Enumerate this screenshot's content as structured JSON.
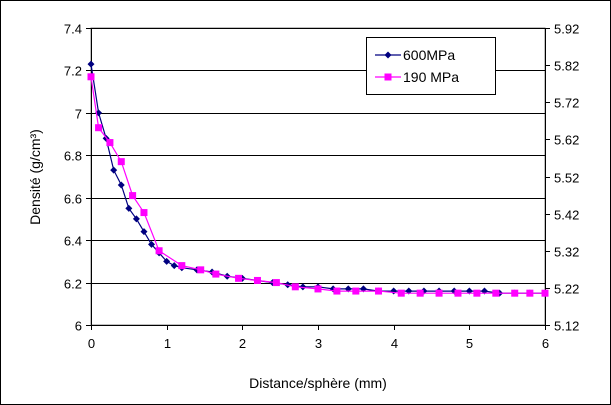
{
  "chart_data": {
    "type": "line",
    "title": "",
    "xlabel": "Distance/sphère (mm)",
    "ylabel": "Densité (g/cm³)",
    "xlim": [
      0,
      6
    ],
    "ylim": [
      6,
      7.4
    ],
    "ylim_right": [
      5.12,
      5.92
    ],
    "x_ticks": [
      "0",
      "1",
      "2",
      "3",
      "4",
      "5",
      "6"
    ],
    "y_ticks": [
      "6",
      "6.2",
      "6.4",
      "6.6",
      "6.8",
      "7",
      "7.2",
      "7.4"
    ],
    "y_right_ticks": [
      "5.12",
      "5.22",
      "5.32",
      "5.42",
      "5.52",
      "5.62",
      "5.72",
      "5.82",
      "5.92"
    ],
    "grid": "horizontal",
    "legend_position": "top-right",
    "colors": {
      "series_600": "#000080",
      "series_190": "#ff00ff",
      "grid": "#000000",
      "plot_border": "#808080"
    },
    "series": [
      {
        "name": "600MPa",
        "marker": "diamond",
        "x": [
          0.0,
          0.1,
          0.2,
          0.3,
          0.4,
          0.5,
          0.6,
          0.7,
          0.8,
          0.9,
          1.0,
          1.1,
          1.2,
          1.4,
          1.6,
          1.8,
          2.0,
          2.2,
          2.4,
          2.6,
          2.8,
          3.0,
          3.2,
          3.4,
          3.6,
          3.8,
          4.0,
          4.2,
          4.4,
          4.6,
          4.8,
          5.0,
          5.2,
          5.4,
          5.6,
          5.8,
          6.0
        ],
        "y": [
          7.23,
          7.0,
          6.88,
          6.73,
          6.66,
          6.55,
          6.5,
          6.44,
          6.38,
          6.34,
          6.3,
          6.28,
          6.27,
          6.26,
          6.25,
          6.23,
          6.22,
          6.21,
          6.2,
          6.19,
          6.18,
          6.18,
          6.17,
          6.17,
          6.17,
          6.16,
          6.16,
          6.16,
          6.16,
          6.16,
          6.16,
          6.16,
          6.16,
          6.15,
          6.15,
          6.15,
          6.15
        ]
      },
      {
        "name": "190 MPa",
        "marker": "square",
        "x": [
          0.0,
          0.1,
          0.25,
          0.4,
          0.55,
          0.7,
          0.9,
          1.2,
          1.45,
          1.65,
          1.95,
          2.2,
          2.45,
          2.7,
          3.0,
          3.25,
          3.5,
          3.8,
          4.1,
          4.35,
          4.6,
          4.85,
          5.1,
          5.35,
          5.6,
          5.8,
          6.0
        ],
        "y": [
          7.17,
          6.93,
          6.86,
          6.77,
          6.61,
          6.53,
          6.35,
          6.28,
          6.26,
          6.24,
          6.22,
          6.21,
          6.2,
          6.18,
          6.17,
          6.16,
          6.16,
          6.16,
          6.15,
          6.15,
          6.15,
          6.15,
          6.15,
          6.15,
          6.15,
          6.15,
          6.15
        ]
      }
    ]
  }
}
